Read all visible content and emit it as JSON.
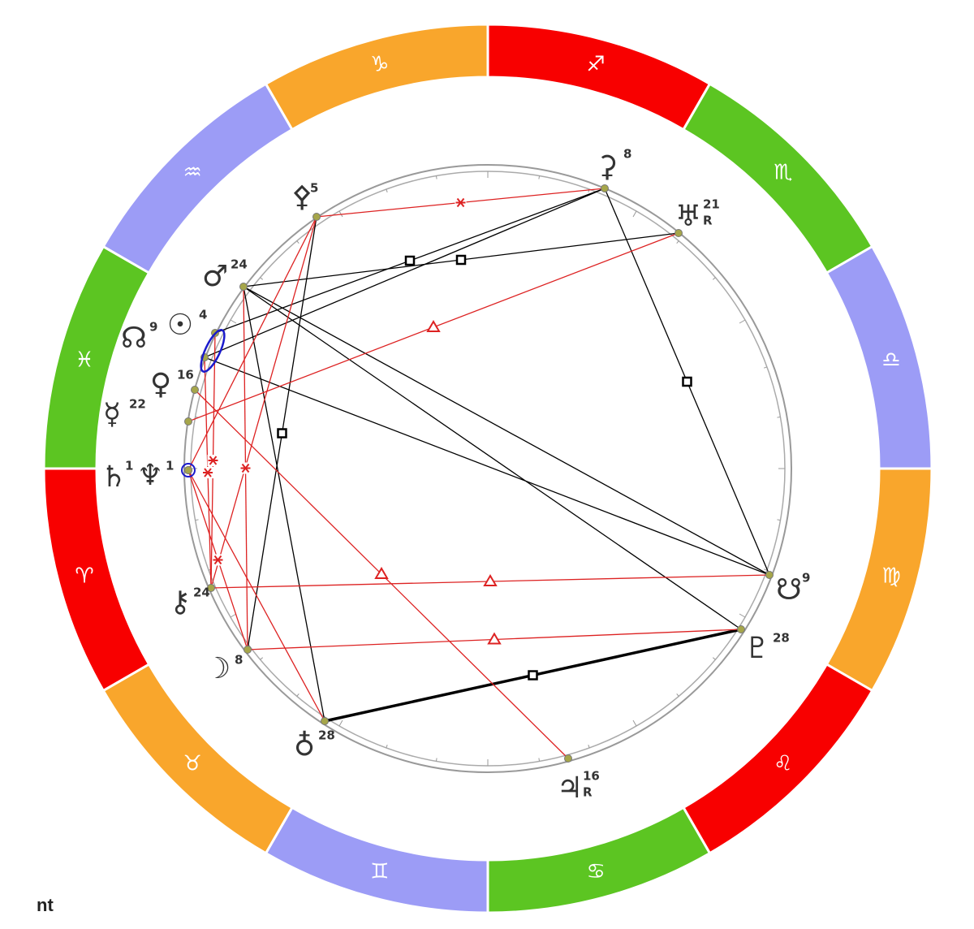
{
  "zodiac": [
    "♐",
    "♏",
    "♎",
    "♍",
    "♌",
    "♋",
    "♊",
    "♉",
    "♈",
    "♓",
    "♒",
    "♑"
  ],
  "planets": [
    {
      "symbol": "⚴",
      "degree": 5
    },
    {
      "symbol": "⚳",
      "degree": 8
    },
    {
      "symbol": "♅",
      "degree": 21,
      "retrograde": "R"
    },
    {
      "symbol": "♂",
      "degree": 24
    },
    {
      "symbol": "☊",
      "degree": 9
    },
    {
      "symbol": "☉",
      "degree": 4
    },
    {
      "symbol": "♀",
      "degree": 16
    },
    {
      "symbol": "☿",
      "degree": 22
    },
    {
      "symbol": "♄",
      "degree": 1
    },
    {
      "symbol": "♆",
      "degree": 1
    },
    {
      "symbol": "⚷",
      "degree": 24
    },
    {
      "symbol": "☽",
      "degree": 8
    },
    {
      "symbol": "♁",
      "degree": 28
    },
    {
      "symbol": "♃",
      "degree": 16,
      "retrograde": "R"
    },
    {
      "symbol": "♇",
      "degree": 28
    },
    {
      "symbol": "☋",
      "degree": 9
    }
  ],
  "footer": "nt"
}
